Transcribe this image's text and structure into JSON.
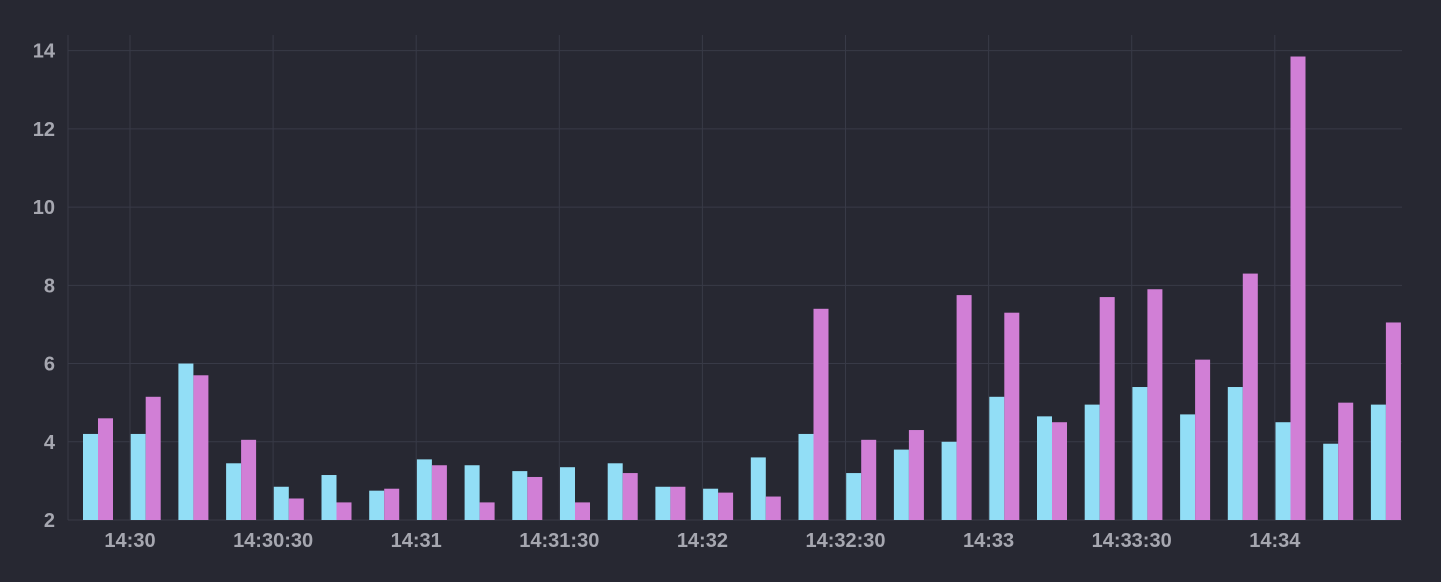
{
  "colors": {
    "background": "#272832",
    "grid": "#383a47",
    "tick_text": "#a6a7b0",
    "series_a": "#92def6",
    "series_b": "#d17fd6"
  },
  "chart_data": {
    "type": "bar",
    "title": "",
    "xlabel": "",
    "ylabel": "",
    "ylim": [
      2,
      14.4
    ],
    "yticks": [
      "2",
      "4",
      "6",
      "8",
      "10",
      "12",
      "14"
    ],
    "x_tick_labels": [
      "14:30",
      "14:30:30",
      "14:31",
      "14:31:30",
      "14:32",
      "14:32:30",
      "14:33",
      "14:33:30",
      "14:34"
    ],
    "grid": true,
    "legend": "none",
    "categories": [
      "14:29:50",
      "14:30:00",
      "14:30:10",
      "14:30:20",
      "14:30:30",
      "14:30:40",
      "14:30:50",
      "14:31:00",
      "14:31:10",
      "14:31:20",
      "14:31:30",
      "14:31:40",
      "14:31:50",
      "14:32:00",
      "14:32:10",
      "14:32:20",
      "14:32:30",
      "14:32:40",
      "14:32:50",
      "14:33:00",
      "14:33:10",
      "14:33:20",
      "14:33:30",
      "14:33:40",
      "14:33:50",
      "14:34:00",
      "14:34:10",
      "14:34:20"
    ],
    "series": [
      {
        "values": [
          4.2,
          4.2,
          6.0,
          3.45,
          2.85,
          3.15,
          2.75,
          3.55,
          3.4,
          3.25,
          3.35,
          3.45,
          2.85,
          2.8,
          3.6,
          4.2,
          3.2,
          3.8,
          4.0,
          5.15,
          4.65,
          4.95,
          5.4,
          4.7,
          5.4,
          4.5,
          3.95,
          4.95
        ]
      },
      {
        "values": [
          4.6,
          5.15,
          5.7,
          4.05,
          2.55,
          2.45,
          2.8,
          3.4,
          2.45,
          3.1,
          2.45,
          3.2,
          2.85,
          2.7,
          2.6,
          7.4,
          4.05,
          4.3,
          7.75,
          7.3,
          4.5,
          7.7,
          7.9,
          6.1,
          8.3,
          13.85,
          5.0,
          7.05
        ]
      }
    ]
  }
}
